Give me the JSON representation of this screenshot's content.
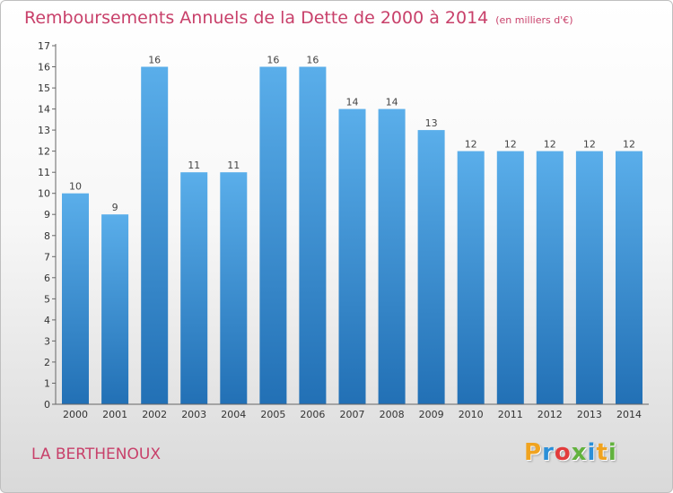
{
  "title": "Remboursements Annuels de la Dette de 2000 à 2014",
  "unit": "(en milliers d'€)",
  "place": "LA BERTHENOUX",
  "logo": [
    "P",
    "r",
    "o",
    "x",
    "i",
    "t",
    "i"
  ],
  "colors": {
    "title": "#c8406a",
    "bar_top": "#5aaeea",
    "bar_bottom": "#2270b5",
    "logo": [
      "#f0a31f",
      "#2b8fd8",
      "#e23b3b",
      "#62b23d",
      "#2b8fd8",
      "#f0a31f",
      "#62b23d"
    ]
  },
  "chart_data": {
    "type": "bar",
    "categories": [
      "2000",
      "2001",
      "2002",
      "2003",
      "2004",
      "2005",
      "2006",
      "2007",
      "2008",
      "2009",
      "2010",
      "2011",
      "2012",
      "2013",
      "2014"
    ],
    "values": [
      10,
      9,
      16,
      11,
      11,
      16,
      16,
      14,
      14,
      13,
      12,
      12,
      12,
      12,
      12
    ],
    "ylim": [
      0,
      17
    ],
    "yticks": [
      0,
      1,
      2,
      3,
      4,
      5,
      6,
      7,
      8,
      9,
      10,
      11,
      12,
      13,
      14,
      15,
      16,
      17
    ],
    "grid": false,
    "data_labels": true
  }
}
